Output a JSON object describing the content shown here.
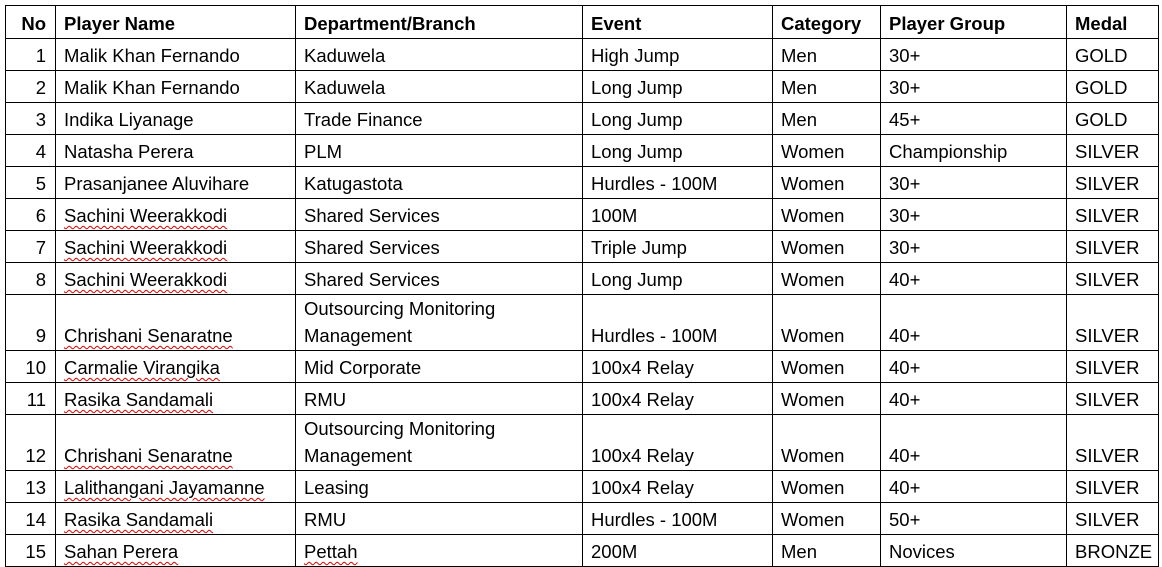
{
  "headers": [
    "No",
    "Player Name",
    "Department/Branch",
    "Event",
    "Category",
    "Player Group",
    "Medal"
  ],
  "rows": [
    {
      "no": "1",
      "name": "Malik Khan Fernando",
      "dept": "Kaduwela",
      "event": "High Jump",
      "category": "Men",
      "group": "30+",
      "medal": "GOLD"
    },
    {
      "no": "2",
      "name": "Malik Khan Fernando",
      "dept": "Kaduwela",
      "event": "Long Jump",
      "category": "Men",
      "group": "30+",
      "medal": "GOLD"
    },
    {
      "no": "3",
      "name": "Indika Liyanage",
      "dept": "Trade Finance",
      "event": "Long Jump",
      "category": "Men",
      "group": "45+",
      "medal": "GOLD"
    },
    {
      "no": "4",
      "name": "Natasha Perera",
      "dept": "PLM",
      "event": "Long Jump",
      "category": "Women",
      "group": "Championship",
      "medal": "SILVER"
    },
    {
      "no": "5",
      "name": "Prasanjanee Aluvihare",
      "dept": "Katugastota",
      "event": "Hurdles - 100M",
      "category": "Women",
      "group": "30+",
      "medal": "SILVER"
    },
    {
      "no": "6",
      "name": "Sachini Weerakkodi",
      "dept": "Shared Services",
      "event": "100M",
      "category": "Women",
      "group": "30+",
      "medal": "SILVER"
    },
    {
      "no": "7",
      "name": "Sachini Weerakkodi",
      "dept": "Shared Services",
      "event": "Triple Jump",
      "category": "Women",
      "group": "30+",
      "medal": "SILVER"
    },
    {
      "no": "8",
      "name": "Sachini Weerakkodi",
      "dept": "Shared Services",
      "event": "Long Jump",
      "category": "Women",
      "group": "40+",
      "medal": "SILVER"
    },
    {
      "no": "9",
      "name": "Chrishani Senaratne",
      "dept": "Outsourcing Monitoring Management",
      "event": "Hurdles - 100M",
      "category": "Women",
      "group": "40+",
      "medal": "SILVER"
    },
    {
      "no": "10",
      "name": "Carmalie Virangika",
      "dept": "Mid Corporate",
      "event": "100x4 Relay",
      "category": "Women",
      "group": "40+",
      "medal": "SILVER"
    },
    {
      "no": "11",
      "name": "Rasika Sandamali",
      "dept": "RMU",
      "event": "100x4 Relay",
      "category": "Women",
      "group": "40+",
      "medal": "SILVER"
    },
    {
      "no": "12",
      "name": "Chrishani Senaratne",
      "dept": "Outsourcing Monitoring Management",
      "event": "100x4 Relay",
      "category": "Women",
      "group": "40+",
      "medal": "SILVER"
    },
    {
      "no": "13",
      "name": "Lalithangani Jayamanne",
      "dept": "Leasing",
      "event": "100x4 Relay",
      "category": "Women",
      "group": "40+",
      "medal": "SILVER"
    },
    {
      "no": "14",
      "name": "Rasika Sandamali",
      "dept": "RMU",
      "event": "Hurdles - 100M",
      "category": "Women",
      "group": "50+",
      "medal": "SILVER"
    },
    {
      "no": "15",
      "name": "Sahan Perera",
      "dept": "Pettah",
      "event": "200M",
      "category": "Men",
      "group": "Novices",
      "medal": "BRONZE"
    }
  ],
  "spellcheck_color": "#e00000"
}
